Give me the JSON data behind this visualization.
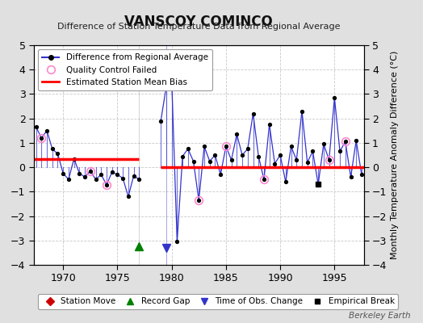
{
  "title": "VANSCOY COMINCO",
  "subtitle": "Difference of Station Temperature Data from Regional Average",
  "ylabel": "Monthly Temperature Anomaly Difference (°C)",
  "line_color": "#3333cc",
  "dot_color": "#000000",
  "qc_color": "#ff88cc",
  "bias_color": "#ff0000",
  "bg_color": "#e0e0e0",
  "plot_bg": "#ffffff",
  "grid_color": "#bbbbbb",
  "ylim": [
    -4,
    5
  ],
  "xlim": [
    1967.3,
    1997.7
  ],
  "xticks": [
    1970,
    1975,
    1980,
    1985,
    1990,
    1995
  ],
  "seg1_bias": 0.35,
  "seg2_bias": 0.0,
  "seg1_x_start": 1967.3,
  "seg1_x_end": 1977.0,
  "seg2_x_start": 1979.0,
  "seg2_x_end": 1997.7,
  "record_gap_x": 1977.0,
  "obs_change_x": 1979.5,
  "marker_y": -3.25,
  "seg1_years": [
    1967.5,
    1968.0,
    1968.5,
    1969.0,
    1969.5,
    1970.0,
    1970.5,
    1971.0,
    1971.5,
    1972.0,
    1972.5,
    1973.0,
    1973.5,
    1974.0,
    1974.5,
    1975.0,
    1975.5,
    1976.0,
    1976.5,
    1977.0
  ],
  "seg1_vals": [
    1.65,
    1.2,
    1.5,
    0.75,
    0.55,
    -0.25,
    -0.5,
    0.35,
    -0.25,
    -0.4,
    -0.15,
    -0.5,
    -0.3,
    -0.72,
    -0.2,
    -0.3,
    -0.45,
    -1.2,
    -0.35,
    -0.5
  ],
  "seg1_qc": [
    1968.0,
    1972.5,
    1974.0
  ],
  "seg2_years": [
    1979.0,
    1979.5,
    1980.0,
    1980.5,
    1981.0,
    1981.5,
    1982.0,
    1982.5,
    1983.0,
    1983.5,
    1984.0,
    1984.5,
    1985.0,
    1985.5,
    1986.0,
    1986.5,
    1987.0,
    1987.5,
    1988.0,
    1988.5,
    1989.0,
    1989.5,
    1990.0,
    1990.5,
    1991.0,
    1991.5,
    1992.0,
    1992.5,
    1993.0,
    1993.5,
    1994.0,
    1994.5,
    1995.0,
    1995.5,
    1996.0,
    1996.5,
    1997.0,
    1997.5
  ],
  "seg2_vals": [
    1.9,
    3.3,
    3.6,
    -3.05,
    0.45,
    0.75,
    0.25,
    -1.35,
    0.85,
    0.25,
    0.5,
    -0.3,
    0.85,
    0.3,
    1.35,
    0.5,
    0.75,
    2.2,
    0.45,
    -0.5,
    1.75,
    0.15,
    0.5,
    -0.6,
    0.85,
    0.3,
    2.3,
    0.2,
    0.65,
    -0.7,
    0.95,
    0.3,
    2.85,
    0.65,
    1.05,
    -0.4,
    1.1,
    -0.3
  ],
  "seg2_qc": [
    1979.5,
    1982.5,
    1985.0,
    1988.5,
    1994.5,
    1996.0
  ],
  "emp_break_x": 1993.5
}
